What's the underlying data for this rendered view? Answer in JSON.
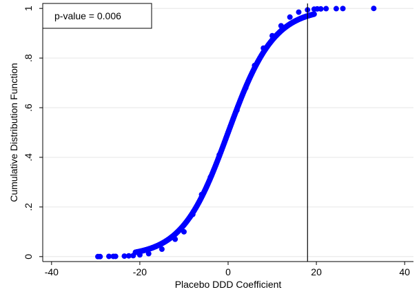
{
  "chart_data": {
    "type": "scatter",
    "title": "",
    "xlabel": "Placebo DDD Coefficient",
    "ylabel": "Cumulative Distribution Function",
    "xlim": [
      -42,
      42
    ],
    "ylim": [
      -0.02,
      1.02
    ],
    "x_ticks": [
      -40,
      -20,
      0,
      20,
      40
    ],
    "x_tick_labels": [
      "-40",
      "-20",
      "0",
      "20",
      "40"
    ],
    "y_ticks": [
      0,
      0.2,
      0.4,
      0.6,
      0.8,
      1
    ],
    "y_tick_labels": [
      "0",
      ".2",
      ".4",
      ".6",
      ".8",
      "1"
    ],
    "grid": "horizontal",
    "marker_color": "#0000ff",
    "reference_line": {
      "x": 18,
      "color": "#000000"
    },
    "annotation": "p-value = 0.006",
    "curve_model": {
      "form": "logistic",
      "center": 0,
      "scale": 5.2,
      "x_min": -21,
      "x_max": 19.5,
      "n_points": 760
    },
    "sample_points": [
      [
        -29.5,
        0.0
      ],
      [
        -29.0,
        0.0
      ],
      [
        -27.0,
        0.001
      ],
      [
        -26.0,
        0.001
      ],
      [
        -25.5,
        0.001
      ],
      [
        -23.5,
        0.002
      ],
      [
        -22.5,
        0.003
      ],
      [
        -21.5,
        0.004
      ],
      [
        -20.0,
        0.007
      ],
      [
        -18.0,
        0.012
      ],
      [
        -15.0,
        0.03
      ],
      [
        -12.0,
        0.07
      ],
      [
        -10.0,
        0.1
      ],
      [
        -8.0,
        0.17
      ],
      [
        -6.0,
        0.25
      ],
      [
        -4.0,
        0.32
      ],
      [
        -2.0,
        0.41
      ],
      [
        0.0,
        0.5
      ],
      [
        2.0,
        0.59
      ],
      [
        4.0,
        0.68
      ],
      [
        6.0,
        0.77
      ],
      [
        8.0,
        0.84
      ],
      [
        10.0,
        0.89
      ],
      [
        12.0,
        0.93
      ],
      [
        14.0,
        0.965
      ],
      [
        16.0,
        0.985
      ],
      [
        18.0,
        0.994
      ]
    ],
    "outlier_points": [
      [
        19.5,
        0.997
      ],
      [
        20.2,
        0.998
      ],
      [
        21.0,
        0.998
      ],
      [
        22.2,
        0.999
      ],
      [
        24.5,
        0.999
      ],
      [
        26.0,
        0.9995
      ],
      [
        33.0,
        1.0
      ]
    ]
  }
}
